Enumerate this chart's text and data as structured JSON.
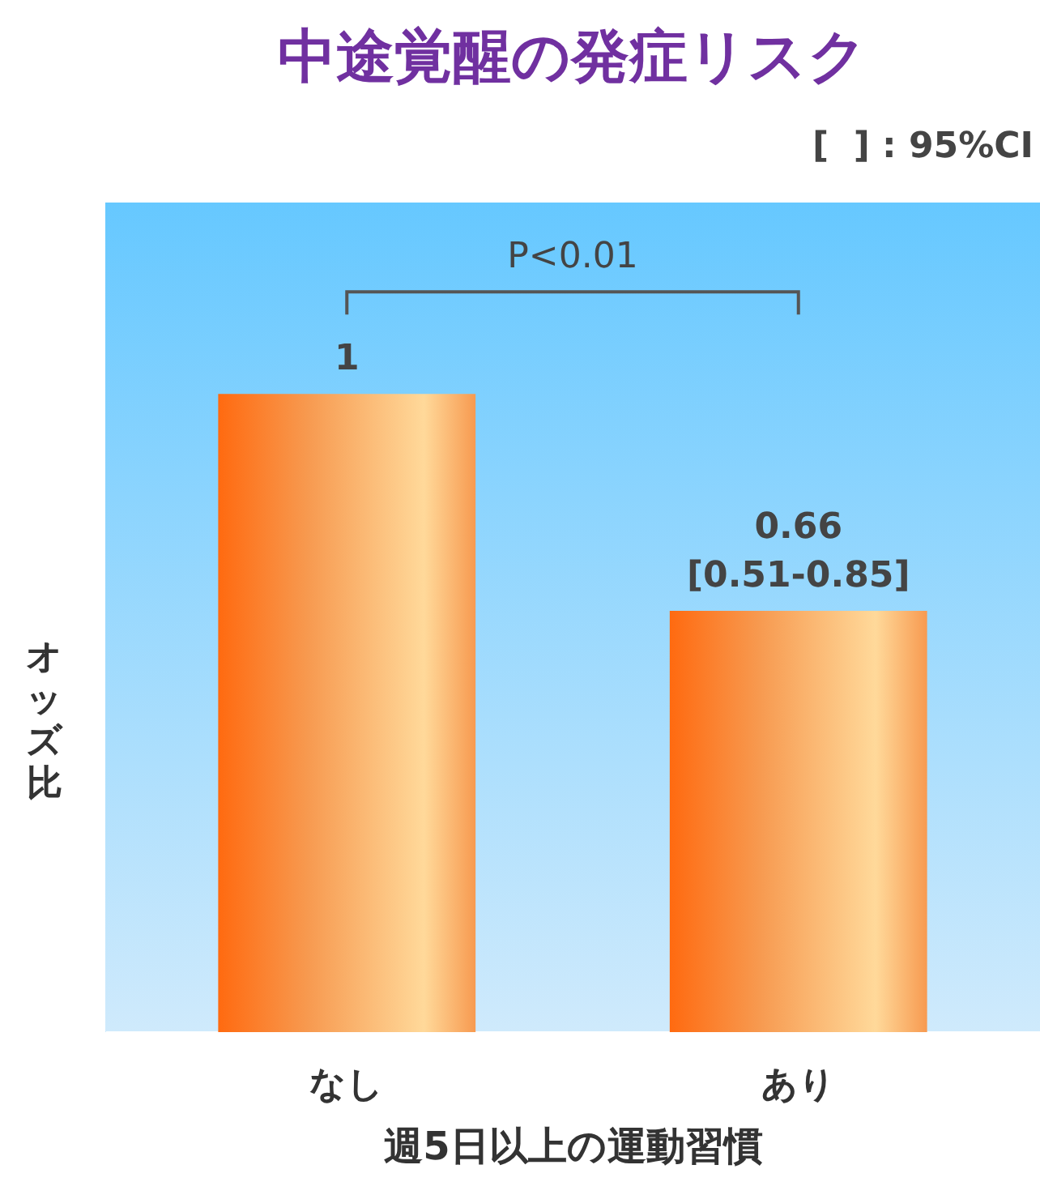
{
  "chart_data": {
    "type": "bar",
    "title": "中途覚醒の発症リスク",
    "xlabel": "週5日以上の運動習慣",
    "ylabel": "オッズ比",
    "categories": [
      "なし",
      "あり"
    ],
    "values": [
      1,
      0.66
    ],
    "value_labels": [
      "1",
      "0.66\n[0.51-0.85]"
    ],
    "color": "#f79a50",
    "ylim": [
      0,
      1.3
    ],
    "tick_labels": "x",
    "grid": false,
    "annotations": [
      "[  ] : 95%CI",
      "P<0.01"
    ]
  }
}
